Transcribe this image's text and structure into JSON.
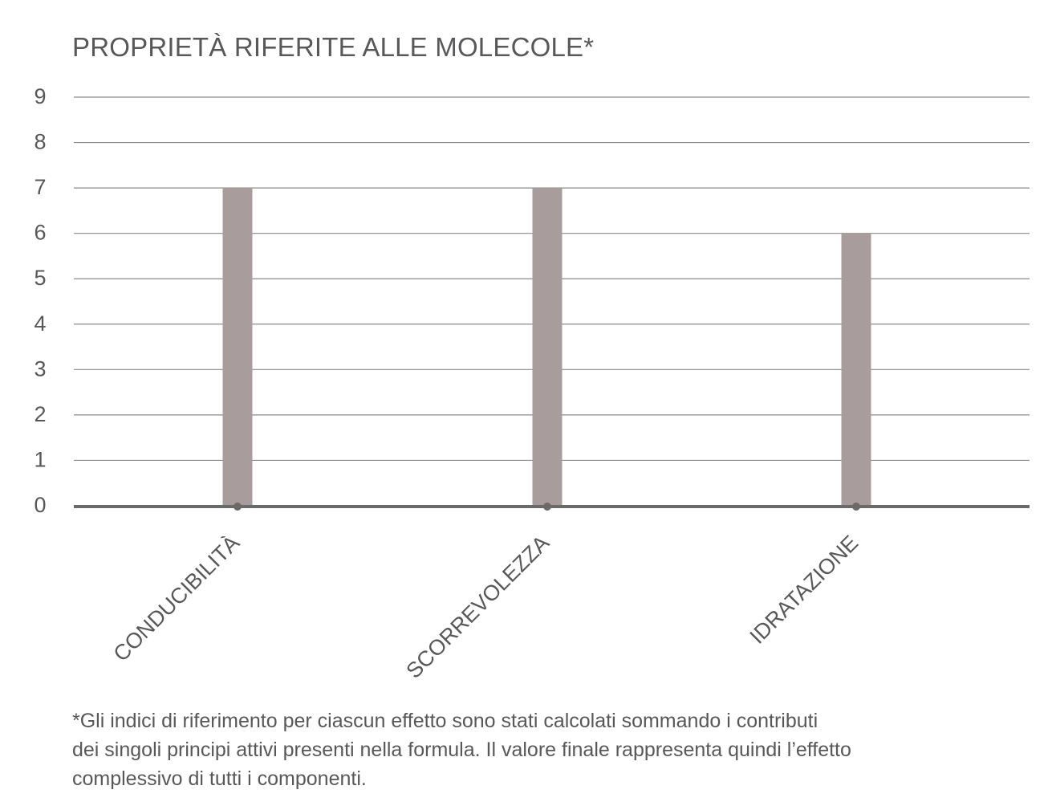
{
  "chart_data": {
    "type": "bar",
    "title": "PROPRIETÀ RIFERITE ALLE MOLECOLE*",
    "xlabel": "",
    "ylabel": "",
    "categories": [
      "CONDUCIBILITÀ",
      "SCORREVOLEZZA",
      "IDRATAZIONE"
    ],
    "values": [
      7,
      7,
      6
    ],
    "ylim": [
      0,
      9
    ],
    "yticks": [
      "0",
      "1",
      "2",
      "3",
      "4",
      "5",
      "6",
      "7",
      "8",
      "9"
    ],
    "grid": true,
    "bar_color": "#a89c9c",
    "axis_color": "#6a6a6a",
    "grid_color": "#8a8a8a"
  },
  "note": {
    "line1": "*Gli indici di riferimento per ciascun effetto sono stati calcolati sommando i contributi",
    "line2": "dei singoli principi attivi presenti nella formula. Il valore finale rappresenta quindi l’effetto",
    "line3": "complessivo di tutti i componenti."
  }
}
